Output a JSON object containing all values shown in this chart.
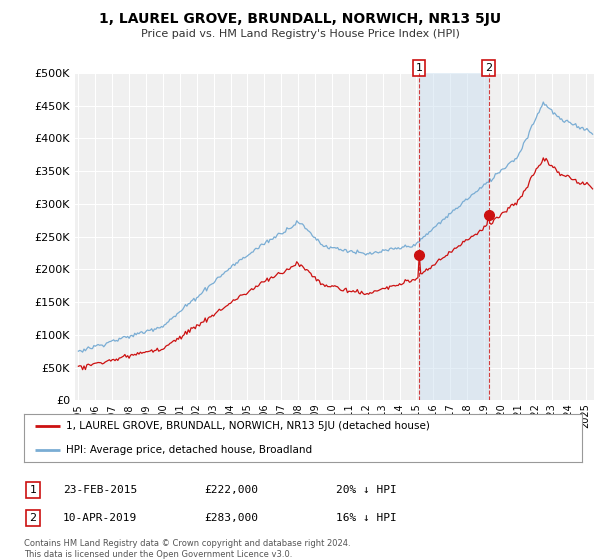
{
  "title": "1, LAUREL GROVE, BRUNDALL, NORWICH, NR13 5JU",
  "subtitle": "Price paid vs. HM Land Registry's House Price Index (HPI)",
  "ylim": [
    0,
    500000
  ],
  "yticks": [
    0,
    50000,
    100000,
    150000,
    200000,
    250000,
    300000,
    350000,
    400000,
    450000,
    500000
  ],
  "xlim_start": 1994.8,
  "xlim_end": 2025.5,
  "background_color": "#ffffff",
  "plot_bg_color": "#f0f0f0",
  "grid_color": "#ffffff",
  "hpi_color": "#7aadd4",
  "sale_color": "#cc1111",
  "sale1_x": 2015.145,
  "sale1_y": 222000,
  "sale2_x": 2019.274,
  "sale2_y": 283000,
  "legend_sale_label": "1, LAUREL GROVE, BRUNDALL, NORWICH, NR13 5JU (detached house)",
  "legend_hpi_label": "HPI: Average price, detached house, Broadland",
  "table_rows": [
    [
      "1",
      "23-FEB-2015",
      "£222,000",
      "20% ↓ HPI"
    ],
    [
      "2",
      "10-APR-2019",
      "£283,000",
      "16% ↓ HPI"
    ]
  ],
  "footer": "Contains HM Land Registry data © Crown copyright and database right 2024.\nThis data is licensed under the Open Government Licence v3.0.",
  "shade_x1": 2015.145,
  "shade_x2": 2019.274,
  "shade_color": "#cce0f0",
  "shade_alpha": 0.5
}
